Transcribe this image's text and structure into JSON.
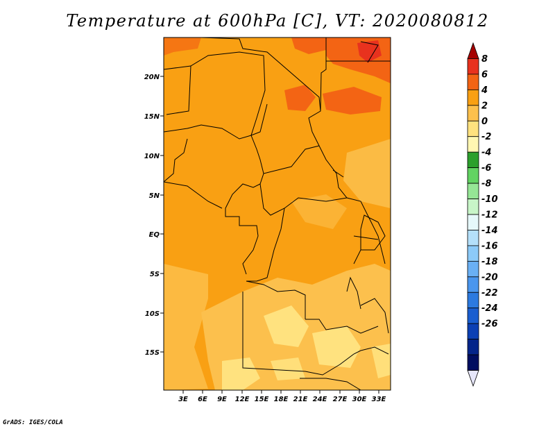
{
  "title": "Temperature at 600hPa [C], VT: 2020080812",
  "credit": "GrADS: IGES/COLA",
  "map": {
    "lat_labels": [
      "20N",
      "15N",
      "10N",
      "5N",
      "EQ",
      "5S",
      "10S",
      "15S"
    ],
    "lon_labels": [
      "3E",
      "6E",
      "9E",
      "12E",
      "15E",
      "18E",
      "21E",
      "24E",
      "27E",
      "30E",
      "33E"
    ]
  },
  "colorbar": {
    "labels": [
      "8",
      "6",
      "4",
      "2",
      "0",
      "-2",
      "-4",
      "-6",
      "-8",
      "-10",
      "-12",
      "-14",
      "-16",
      "-18",
      "-20",
      "-22",
      "-24",
      "-26"
    ],
    "colors": [
      "#a50000",
      "#e8321e",
      "#f36414",
      "#f9a013",
      "#fcc04d",
      "#ffe27f",
      "#fff7b2",
      "#2ca02c",
      "#62d362",
      "#96e696",
      "#c8f5c8",
      "#e6f8fa",
      "#b4e0fa",
      "#8ccaf8",
      "#6ab0f4",
      "#4a96ee",
      "#2c7ae0",
      "#1a5ed0",
      "#0c40b4",
      "#04258a",
      "#000e60",
      "#e6e6fa"
    ]
  }
}
